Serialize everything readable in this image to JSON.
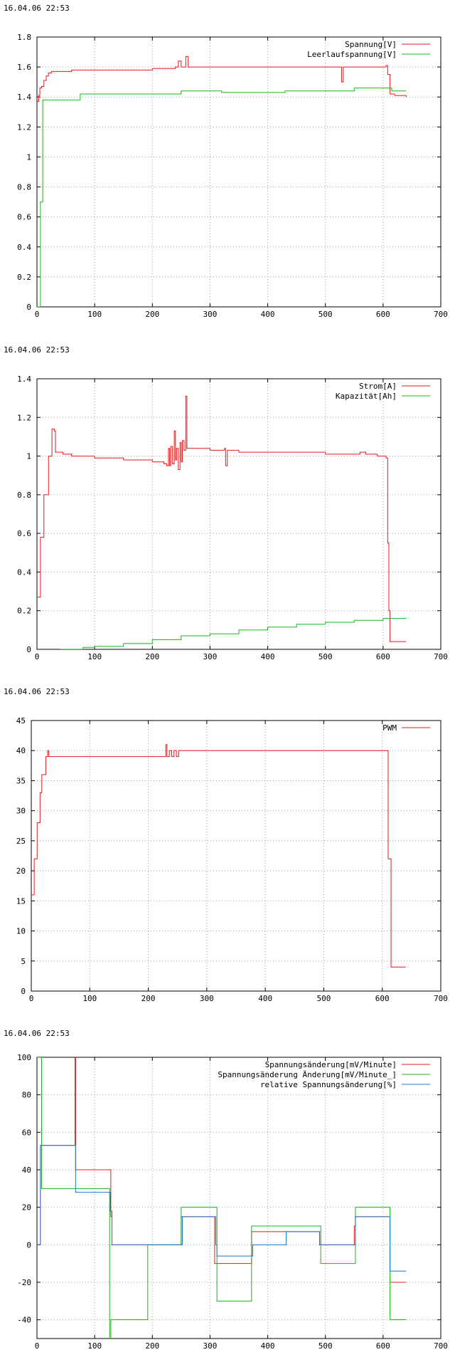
{
  "chart_data": [
    {
      "type": "line",
      "timestamp": "16.04.06 22:53",
      "xlim": [
        0,
        700
      ],
      "ylim": [
        0,
        1.8
      ],
      "xticks": [
        "0",
        "100",
        "200",
        "300",
        "400",
        "500",
        "600",
        "700"
      ],
      "yticks": [
        "0",
        "0.2",
        "0.4",
        "0.6",
        "0.8",
        "1",
        "1.2",
        "1.4",
        "1.6",
        "1.8"
      ],
      "grid": true,
      "legend_position": "top-right",
      "series": [
        {
          "name": "Spannung[V]",
          "color": "#e41a1c",
          "x": [
            0,
            3,
            5,
            8,
            12,
            16,
            20,
            25,
            30,
            40,
            50,
            60,
            70,
            100,
            150,
            200,
            230,
            240,
            245,
            250,
            255,
            258,
            262,
            270,
            300,
            350,
            400,
            450,
            500,
            525,
            528,
            531,
            540,
            560,
            600,
            605,
            608,
            612,
            620,
            640
          ],
          "y": [
            1.37,
            1.41,
            1.46,
            1.47,
            1.51,
            1.54,
            1.56,
            1.57,
            1.57,
            1.57,
            1.57,
            1.58,
            1.58,
            1.58,
            1.58,
            1.59,
            1.59,
            1.6,
            1.64,
            1.6,
            1.6,
            1.67,
            1.6,
            1.6,
            1.6,
            1.6,
            1.6,
            1.6,
            1.6,
            1.6,
            1.5,
            1.6,
            1.6,
            1.6,
            1.6,
            1.61,
            1.55,
            1.42,
            1.41,
            1.4
          ]
        },
        {
          "name": "Leerlaufspannung[V]",
          "color": "#1bb31b",
          "x": [
            0,
            3,
            6,
            10,
            20,
            70,
            75,
            120,
            180,
            245,
            250,
            310,
            320,
            420,
            430,
            500,
            545,
            550,
            600,
            615,
            640
          ],
          "y": [
            0,
            0,
            0.7,
            1.38,
            1.38,
            1.38,
            1.42,
            1.42,
            1.42,
            1.42,
            1.44,
            1.44,
            1.43,
            1.43,
            1.44,
            1.44,
            1.44,
            1.46,
            1.46,
            1.44,
            1.44
          ]
        }
      ]
    },
    {
      "type": "line",
      "timestamp": "16.04.06 22:53",
      "xlim": [
        0,
        700
      ],
      "ylim": [
        0,
        1.4
      ],
      "xticks": [
        "0",
        "100",
        "200",
        "300",
        "400",
        "500",
        "600",
        "700"
      ],
      "yticks": [
        "0",
        "0.2",
        "0.4",
        "0.6",
        "0.8",
        "1",
        "1.2",
        "1.4"
      ],
      "grid": true,
      "legend_position": "top-right",
      "series": [
        {
          "name": "Strom[A]",
          "color": "#e41a1c",
          "x": [
            0,
            5,
            6,
            10,
            12,
            18,
            20,
            25,
            26,
            30,
            32,
            45,
            60,
            100,
            150,
            200,
            220,
            225,
            228,
            230,
            232,
            235,
            238,
            240,
            242,
            245,
            248,
            250,
            252,
            255,
            258,
            260,
            262,
            270,
            300,
            320,
            325,
            327,
            330,
            350,
            400,
            450,
            500,
            550,
            560,
            570,
            590,
            600,
            605,
            608,
            610,
            612,
            615,
            630,
            640
          ],
          "y": [
            0.27,
            0.27,
            0.58,
            0.58,
            0.8,
            0.8,
            1.0,
            1.0,
            1.14,
            1.13,
            1.02,
            1.01,
            1.0,
            0.99,
            0.98,
            0.97,
            0.96,
            0.95,
            1.04,
            0.95,
            1.05,
            0.96,
            1.13,
            0.98,
            1.04,
            0.93,
            1.07,
            0.97,
            1.08,
            1.03,
            1.31,
            1.04,
            1.04,
            1.04,
            1.03,
            1.03,
            1.04,
            0.95,
            1.03,
            1.02,
            1.02,
            1.02,
            1.01,
            1.01,
            1.02,
            1.01,
            1.0,
            1.0,
            0.99,
            0.55,
            0.2,
            0.04,
            0.04,
            0.04,
            0.04
          ]
        },
        {
          "name": "Kapazität[Ah]",
          "color": "#1bb31b",
          "x": [
            40,
            80,
            100,
            150,
            200,
            250,
            300,
            350,
            400,
            450,
            500,
            550,
            600,
            640
          ],
          "y": [
            0.0,
            0.01,
            0.015,
            0.03,
            0.05,
            0.07,
            0.08,
            0.1,
            0.115,
            0.13,
            0.14,
            0.15,
            0.16,
            0.16
          ]
        }
      ]
    },
    {
      "type": "line",
      "timestamp": "16.04.06 22:53",
      "xlim": [
        0,
        700
      ],
      "ylim": [
        0,
        45
      ],
      "xticks": [
        "0",
        "100",
        "200",
        "300",
        "400",
        "500",
        "600",
        "700"
      ],
      "yticks": [
        "0",
        "5",
        "10",
        "15",
        "20",
        "25",
        "30",
        "35",
        "40",
        "45"
      ],
      "grid": true,
      "legend_position": "top-right",
      "series": [
        {
          "name": "PWM",
          "color": "#e41a1c",
          "x": [
            0,
            3,
            5,
            10,
            12,
            15,
            18,
            22,
            25,
            28,
            30,
            45,
            100,
            150,
            200,
            228,
            230,
            232,
            236,
            240,
            244,
            248,
            252,
            256,
            300,
            400,
            500,
            600,
            607,
            610,
            615,
            640
          ],
          "y": [
            16,
            16,
            22,
            28,
            28,
            33,
            36,
            36,
            39,
            40,
            39,
            39,
            39,
            39,
            39,
            39,
            41,
            39,
            40,
            39,
            40,
            39,
            40,
            40,
            40,
            40,
            40,
            40,
            40,
            22,
            4,
            4
          ]
        }
      ]
    },
    {
      "type": "line",
      "timestamp": "16.04.06 22:53",
      "xlim": [
        0,
        700
      ],
      "ylim": [
        -50,
        100
      ],
      "xticks": [
        "0",
        "100",
        "200",
        "300",
        "400",
        "500",
        "600",
        "700"
      ],
      "yticks": [
        "-40",
        "-20",
        "0",
        "20",
        "40",
        "60",
        "80",
        "100"
      ],
      "grid": true,
      "legend_position": "top-right",
      "series": [
        {
          "name": "Spannungsänderung[mV/Minute]",
          "color": "#e41a1c",
          "x": [
            0,
            5,
            6,
            65,
            66,
            67,
            70,
            120,
            128,
            130,
            180,
            190,
            250,
            305,
            308,
            310,
            370,
            372,
            374,
            430,
            490,
            550,
            552,
            554,
            610,
            612,
            640
          ],
          "y": [
            0,
            0,
            53,
            53,
            100,
            40,
            40,
            40,
            15,
            0,
            0,
            0,
            15,
            15,
            -10,
            -10,
            -10,
            7,
            7,
            7,
            0,
            10,
            15,
            15,
            15,
            -20,
            -20
          ]
        },
        {
          "name": "Spannungsänderung Änderung[mV/Minute_]",
          "color": "#1bb31b",
          "x": [
            0,
            5,
            8,
            68,
            70,
            125,
            126,
            128,
            190,
            192,
            250,
            310,
            312,
            370,
            372,
            430,
            490,
            492,
            550,
            552,
            610,
            612,
            640
          ],
          "y": [
            100,
            100,
            30,
            30,
            30,
            30,
            -50,
            -40,
            -40,
            0,
            20,
            20,
            -30,
            -30,
            10,
            10,
            10,
            -10,
            -10,
            20,
            20,
            -40,
            -40
          ]
        },
        {
          "name": "relative Spannungsänderung[%]",
          "color": "#1a75d8",
          "x": [
            0,
            5,
            6,
            66,
            67,
            70,
            125,
            127,
            130,
            190,
            250,
            252,
            308,
            310,
            312,
            372,
            374,
            430,
            432,
            490,
            550,
            552,
            610,
            612,
            640
          ],
          "y": [
            0,
            0,
            53,
            53,
            28,
            28,
            28,
            18,
            0,
            0,
            0,
            15,
            15,
            0,
            -6,
            -6,
            0,
            0,
            7,
            0,
            0,
            15,
            15,
            -14,
            -14
          ]
        }
      ]
    }
  ]
}
